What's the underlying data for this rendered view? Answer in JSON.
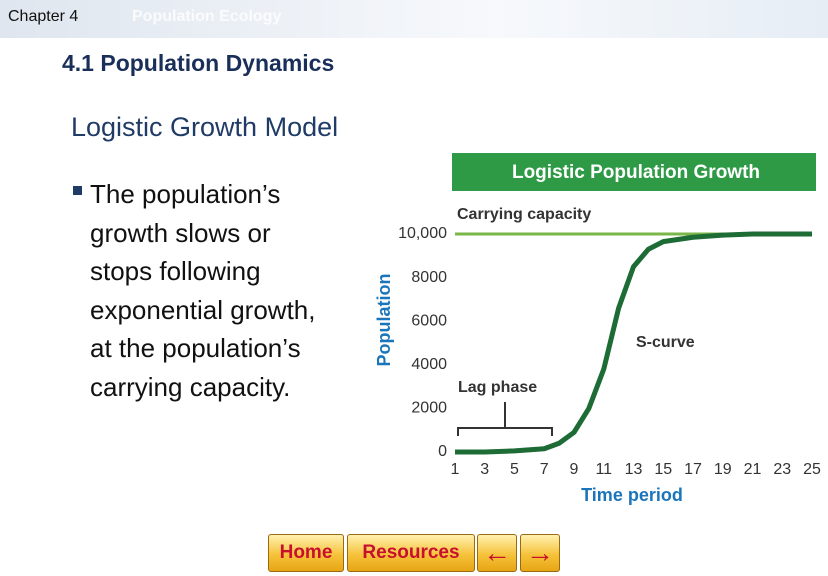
{
  "header": {
    "chapter": "Chapter 4",
    "book": "Population Ecology"
  },
  "section": "4.1 Population Dynamics",
  "heading": "Logistic Growth Model",
  "bullet_lines": [
    "The population’s",
    "growth slows or",
    "stops following",
    "exponential growth,",
    "at the population’s",
    "carrying capacity."
  ],
  "chart_data": {
    "type": "line",
    "title": "Logistic Population Growth",
    "x_label": "Time period",
    "y_label": "Population",
    "x": [
      1,
      3,
      5,
      7,
      8,
      9,
      10,
      11,
      12,
      13,
      14,
      15,
      17,
      19,
      21,
      23,
      25
    ],
    "series": [
      {
        "name": "Carrying capacity",
        "color": "#7ab648",
        "values": [
          10000,
          10000,
          10000,
          10000,
          10000,
          10000,
          10000,
          10000,
          10000,
          10000,
          10000,
          10000,
          10000,
          10000,
          10000,
          10000,
          10000
        ]
      },
      {
        "name": "S-curve",
        "color": "#1d6b35",
        "values": [
          0,
          0,
          50,
          150,
          400,
          900,
          2000,
          3800,
          6600,
          8500,
          9300,
          9650,
          9850,
          9950,
          10000,
          10000,
          10000
        ]
      }
    ],
    "annotations": [
      "Lag phase"
    ],
    "xlim": [
      1,
      25
    ],
    "xticks": [
      1,
      3,
      5,
      7,
      9,
      11,
      13,
      15,
      17,
      19,
      21,
      23,
      25
    ],
    "ylim": [
      0,
      10000
    ],
    "yticks": [
      0,
      2000,
      4000,
      6000,
      8000,
      {
        "value": 10000,
        "label": "10,000"
      }
    ]
  },
  "nav": {
    "home": "Home",
    "resources": "Resources"
  }
}
